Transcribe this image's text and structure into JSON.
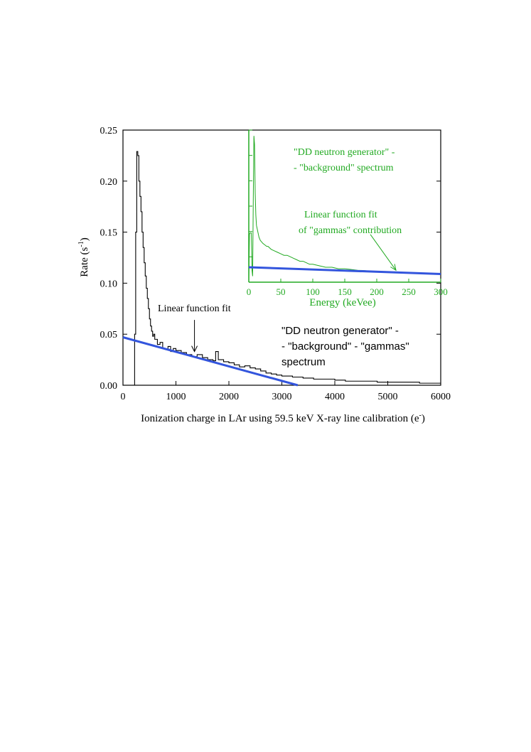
{
  "chart_data": [
    {
      "type": "line",
      "title": "",
      "xlabel": "Ionization charge in LAr using 59.5 keV X-ray line calibration (e",
      "xlabel_sup": "-",
      "xlabel_suffix": ")",
      "ylabel": "Rate (s",
      "ylabel_sup": "-1",
      "ylabel_suffix": ")",
      "xlim": [
        0,
        6000
      ],
      "ylim": [
        0,
        0.25
      ],
      "x_ticks": [
        0,
        1000,
        2000,
        3000,
        4000,
        5000,
        6000
      ],
      "y_ticks": [
        "0.00",
        "0.05",
        "0.10",
        "0.15",
        "0.20",
        "0.25"
      ],
      "grid": false,
      "series": [
        {
          "color": "#000000",
          "x": [
            0,
            150,
            200,
            220,
            240,
            260,
            270,
            280,
            300,
            320,
            340,
            360,
            380,
            400,
            420,
            440,
            460,
            480,
            500,
            520,
            540,
            560,
            580,
            600,
            650,
            700,
            750,
            800,
            850,
            900,
            950,
            1000,
            1100,
            1200,
            1300,
            1400,
            1500,
            1600,
            1700,
            1750,
            1800,
            1900,
            2000,
            2100,
            2200,
            2300,
            2400,
            2500,
            2600,
            2700,
            2800,
            2900,
            3000,
            3200,
            3400,
            3600,
            3800,
            4000,
            4200,
            4400,
            4600,
            4800,
            5000,
            5200,
            5400,
            5600,
            5800,
            6000
          ],
          "y": [
            0,
            0,
            0,
            0.05,
            0.15,
            0.229,
            0.229,
            0.225,
            0.2,
            0.185,
            0.17,
            0.15,
            0.135,
            0.12,
            0.107,
            0.095,
            0.085,
            0.075,
            0.065,
            0.058,
            0.053,
            0.048,
            0.05,
            0.045,
            0.04,
            0.042,
            0.036,
            0.035,
            0.038,
            0.033,
            0.036,
            0.034,
            0.032,
            0.03,
            0.028,
            0.03,
            0.027,
            0.025,
            0.024,
            0.033,
            0.025,
            0.023,
            0.022,
            0.02,
            0.018,
            0.019,
            0.017,
            0.016,
            0.014,
            0.012,
            0.011,
            0.01,
            0.009,
            0.008,
            0.007,
            0.006,
            0.006,
            0.005,
            0.004,
            0.004,
            0.004,
            0.003,
            0.003,
            0.003,
            0.003,
            0.002,
            0.002,
            0.002
          ]
        },
        {
          "color": "#3355dd",
          "x": [
            0,
            3300
          ],
          "y": [
            0.047,
            0.0
          ]
        }
      ],
      "annotations": [
        {
          "text": "Linear function fit",
          "x": 650,
          "y": 0.075
        },
        {
          "text": "\"DD neutron generator\" -",
          "x": 3000,
          "y": 0.057
        },
        {
          "text": "- \"background\" - \"gammas\"",
          "x": 3000,
          "y": 0.04
        },
        {
          "text": " spectrum",
          "x": 3000,
          "y": 0.023
        }
      ],
      "arrow": {
        "from": [
          1350,
          0.064
        ],
        "to": [
          1350,
          0.033
        ]
      }
    },
    {
      "type": "line",
      "title": "",
      "xlabel": "Energy (keVee)",
      "ylabel": "",
      "xlim": [
        0,
        300
      ],
      "x_ticks": [
        0,
        50,
        100,
        150,
        200,
        250,
        300
      ],
      "grid": false,
      "series": [
        {
          "color": "#22aa22",
          "x": [
            0,
            1,
            2,
            3,
            4,
            5,
            6,
            7,
            8,
            9,
            10,
            11,
            12,
            13,
            14,
            15,
            16,
            18,
            20,
            22,
            25,
            28,
            30,
            35,
            40,
            45,
            50,
            55,
            60,
            65,
            70,
            75,
            80,
            85,
            90,
            95,
            100,
            110,
            120,
            130,
            140,
            150,
            160,
            170,
            180,
            190,
            200,
            210,
            220,
            230,
            240,
            250,
            260,
            270,
            280,
            290,
            300
          ],
          "y": [
            0.0,
            0.32,
            0.33,
            0.33,
            0.33,
            0.08,
            0.04,
            0.55,
            0.98,
            0.92,
            0.6,
            0.45,
            0.38,
            0.36,
            0.34,
            0.32,
            0.3,
            0.28,
            0.27,
            0.26,
            0.25,
            0.24,
            0.24,
            0.22,
            0.21,
            0.2,
            0.19,
            0.18,
            0.18,
            0.17,
            0.16,
            0.15,
            0.14,
            0.14,
            0.13,
            0.12,
            0.12,
            0.11,
            0.1,
            0.1,
            0.09,
            0.09,
            0.085,
            0.08,
            0.078,
            0.074,
            0.07,
            0.07,
            0.068,
            0.066,
            0.064,
            0.062,
            0.06,
            0.058,
            0.058,
            0.056,
            0.055
          ]
        },
        {
          "color": "#3355dd",
          "x": [
            0,
            300
          ],
          "y": [
            0.1,
            0.055
          ]
        }
      ],
      "annotations": [
        {
          "text": "\"DD neutron generator\" -",
          "x": 40,
          "y": 0.95
        },
        {
          "text": "- \"background\" spectrum",
          "x": 40,
          "y": 0.82
        },
        {
          "text": "Linear function fit",
          "x": 50,
          "y": 0.51
        },
        {
          "text": "of \"gammas\" contribution",
          "x": 45,
          "y": 0.4
        }
      ],
      "arrow": {
        "from": [
          190,
          0.32
        ],
        "to": [
          230,
          0.08
        ]
      }
    }
  ]
}
